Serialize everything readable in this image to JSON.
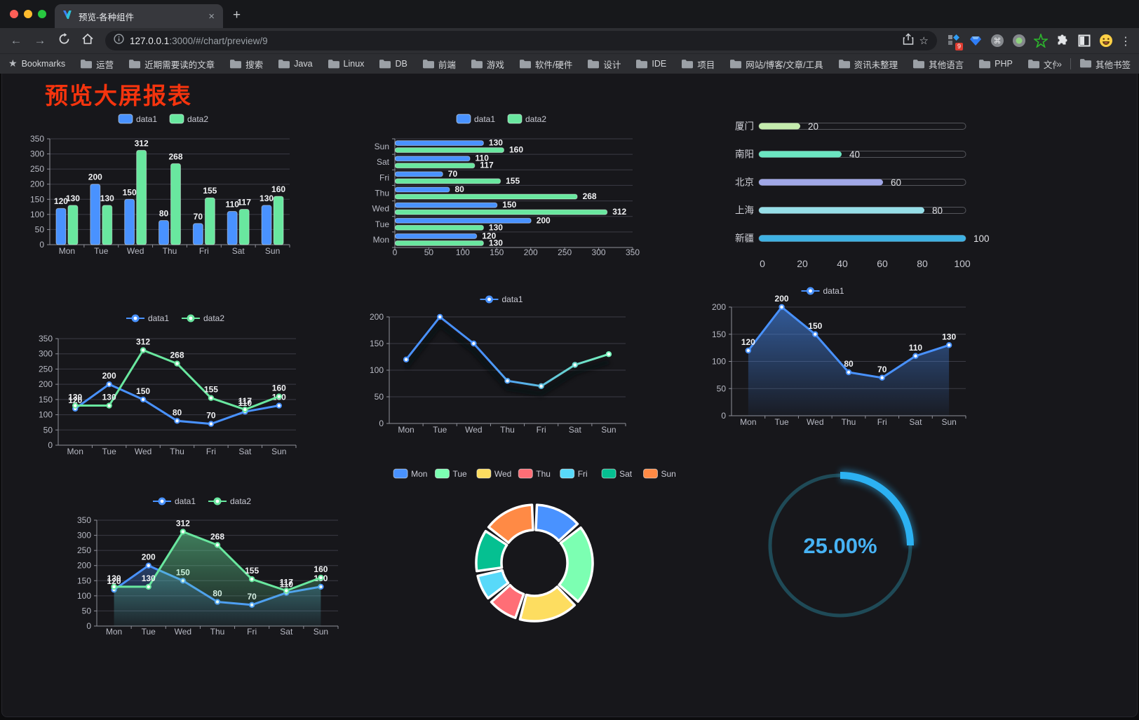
{
  "browser": {
    "traffic_lights": {
      "close": "#ff5f57",
      "minimize": "#febc2e",
      "zoom": "#28c840"
    },
    "tab": {
      "title": "预览-各种组件",
      "close_glyph": "×",
      "new_tab_glyph": "+"
    },
    "toolbar": {
      "back_glyph": "←",
      "forward_glyph": "→",
      "menu_glyph": "⋮"
    },
    "url": {
      "host": "127.0.0.1",
      "rest": ":3000/#/chart/preview/9"
    },
    "extension_badge": "9",
    "bookmarks_bar": {
      "bookmarks_label": "Bookmarks",
      "items": [
        "运营",
        "近期需要读的文章",
        "搜索",
        "Java",
        "Linux",
        "DB",
        "前端",
        "游戏",
        "软件/硬件",
        "设计",
        "IDE",
        "项目",
        "网站/博客/文章/工具",
        "资讯未整理",
        "其他语言",
        "PHP",
        "文件服务器"
      ],
      "overflow_glyph": "»",
      "other_bookmarks_label": "其他书签"
    }
  },
  "page": {
    "title": "预览大屏报表",
    "title_color": "#f5340e"
  },
  "theme": {
    "axis_label": "#b8bac4",
    "grid_line": "#3b3b45",
    "axis_line": "#8f909a",
    "value_label": "#f0f1f3",
    "legend_text": "#c9cad4",
    "series_blue": "#4992ff",
    "series_green": "#69e79f"
  },
  "chart_data": [
    {
      "id": "bar-grouped",
      "type": "bar",
      "categories": [
        "Mon",
        "Tue",
        "Wed",
        "Thu",
        "Fri",
        "Sat",
        "Sun"
      ],
      "series": [
        {
          "name": "data1",
          "color": "#4992ff",
          "values": [
            120,
            200,
            150,
            80,
            70,
            110,
            130
          ]
        },
        {
          "name": "data2",
          "color": "#69e79f",
          "values": [
            130,
            130,
            312,
            268,
            155,
            117,
            160
          ]
        }
      ],
      "ylim": [
        0,
        350
      ],
      "ystep": 50,
      "legend_position": "top",
      "grid": true,
      "labels": true
    },
    {
      "id": "bar-horizontal",
      "type": "bar-horizontal",
      "categories": [
        "Mon",
        "Tue",
        "Wed",
        "Thu",
        "Fri",
        "Sat",
        "Sun"
      ],
      "series": [
        {
          "name": "data1",
          "color": "#4992ff",
          "values": [
            120,
            200,
            150,
            80,
            70,
            110,
            130
          ]
        },
        {
          "name": "data2",
          "color": "#69e79f",
          "values": [
            130,
            130,
            312,
            268,
            155,
            117,
            160
          ]
        }
      ],
      "xlim": [
        0,
        350
      ],
      "xstep": 50,
      "legend_position": "top",
      "labels": true
    },
    {
      "id": "progress-bars",
      "type": "progress",
      "categories": [
        "厦门",
        "南阳",
        "北京",
        "上海",
        "新疆"
      ],
      "values": [
        20,
        40,
        60,
        80,
        100
      ],
      "colors": [
        "#c4ebad",
        "#6be6c1",
        "#a0a7e6",
        "#96dee8",
        "#3fb1e3"
      ],
      "xlim": [
        0,
        100
      ],
      "xticks": [
        0,
        20,
        40,
        60,
        80,
        100
      ]
    },
    {
      "id": "line-basic",
      "type": "line",
      "categories": [
        "Mon",
        "Tue",
        "Wed",
        "Thu",
        "Fri",
        "Sat",
        "Sun"
      ],
      "series": [
        {
          "name": "data1",
          "color": "#4992ff",
          "values": [
            120,
            200,
            150,
            80,
            70,
            110,
            130
          ],
          "markers": true,
          "labels": true
        },
        {
          "name": "data2",
          "color": "#69e79f",
          "values": [
            130,
            130,
            312,
            268,
            155,
            117,
            160
          ],
          "markers": true,
          "labels": true
        }
      ],
      "ylim": [
        0,
        350
      ],
      "ystep": 50,
      "legend_position": "top"
    },
    {
      "id": "line-gradient",
      "type": "line",
      "categories": [
        "Mon",
        "Tue",
        "Wed",
        "Thu",
        "Fri",
        "Sat",
        "Sun"
      ],
      "series": [
        {
          "name": "data1",
          "color": "#4992ff",
          "gradient": [
            "#4992ff",
            "#7cffb2"
          ],
          "shadow": true,
          "values": [
            120,
            200,
            150,
            80,
            70,
            110,
            130
          ],
          "markers": true,
          "labels": false
        }
      ],
      "ylim": [
        0,
        200
      ],
      "ystep": 50,
      "legend_position": "top"
    },
    {
      "id": "area-single",
      "type": "line",
      "categories": [
        "Mon",
        "Tue",
        "Wed",
        "Thu",
        "Fri",
        "Sat",
        "Sun"
      ],
      "series": [
        {
          "name": "data1",
          "color": "#4992ff",
          "area": true,
          "values": [
            120,
            200,
            150,
            80,
            70,
            110,
            130
          ],
          "markers": true,
          "labels": true
        }
      ],
      "ylim": [
        0,
        200
      ],
      "ystep": 50,
      "legend_position": "top"
    },
    {
      "id": "area-double",
      "type": "line",
      "categories": [
        "Mon",
        "Tue",
        "Wed",
        "Thu",
        "Fri",
        "Sat",
        "Sun"
      ],
      "series": [
        {
          "name": "data1",
          "color": "#4992ff",
          "area": true,
          "values": [
            120,
            200,
            150,
            80,
            70,
            110,
            130
          ],
          "markers": true,
          "labels": true
        },
        {
          "name": "data2",
          "color": "#69e79f",
          "area": true,
          "values": [
            130,
            130,
            312,
            268,
            155,
            117,
            160
          ],
          "markers": true,
          "labels": true
        }
      ],
      "ylim": [
        0,
        350
      ],
      "ystep": 50,
      "legend_position": "top"
    },
    {
      "id": "donut",
      "type": "pie",
      "categories": [
        "Mon",
        "Tue",
        "Wed",
        "Thu",
        "Fri",
        "Sat",
        "Sun"
      ],
      "values": [
        120,
        200,
        150,
        80,
        70,
        110,
        130
      ],
      "colors": [
        "#4992ff",
        "#7cffb2",
        "#fddd60",
        "#ff6e76",
        "#58d9f9",
        "#05c091",
        "#ff8a45"
      ],
      "inner_radius_ratio": 0.57,
      "legend_position": "top"
    },
    {
      "id": "gauge",
      "type": "gauge",
      "value": 25,
      "label": "25.00%",
      "color": "#2cb1f2",
      "track_color": "#1f4a57",
      "text_color": "#47b3f5"
    }
  ]
}
